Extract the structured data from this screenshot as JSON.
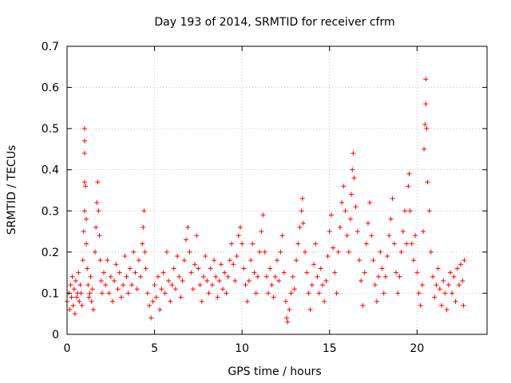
{
  "chart_data": {
    "type": "scatter",
    "title": "Day 193 of 2014, SRMTID for receiver cfrm",
    "xlabel": "GPS time / hours",
    "ylabel": "SRMTID / TECUs",
    "xlim": [
      0,
      24
    ],
    "ylim": [
      0,
      0.7
    ],
    "xticks": [
      0,
      5,
      10,
      15,
      20
    ],
    "xtick_labels": [
      "0",
      "5",
      "10",
      "15",
      "20"
    ],
    "yticks": [
      0,
      0.1,
      0.2,
      0.3,
      0.4,
      0.5,
      0.6,
      0.7
    ],
    "ytick_labels": [
      "0",
      "0.1",
      "0.2",
      "0.3",
      "0.4",
      "0.5",
      "0.6",
      "0.7"
    ],
    "grid": true,
    "marker": "+",
    "color": "#ff0000",
    "series": [
      {
        "name": "SRMTID",
        "points": [
          [
            0.0,
            0.08
          ],
          [
            0.1,
            0.1
          ],
          [
            0.15,
            0.06
          ],
          [
            0.2,
            0.12
          ],
          [
            0.25,
            0.09
          ],
          [
            0.3,
            0.14
          ],
          [
            0.35,
            0.07
          ],
          [
            0.4,
            0.11
          ],
          [
            0.45,
            0.05
          ],
          [
            0.5,
            0.13
          ],
          [
            0.55,
            0.09
          ],
          [
            0.6,
            0.1
          ],
          [
            0.65,
            0.15
          ],
          [
            0.7,
            0.08
          ],
          [
            0.75,
            0.12
          ],
          [
            0.8,
            0.1
          ],
          [
            0.85,
            0.07
          ],
          [
            0.9,
            0.18
          ],
          [
            0.95,
            0.25
          ],
          [
            1.0,
            0.3
          ],
          [
            1.0,
            0.37
          ],
          [
            1.0,
            0.44
          ],
          [
            1.0,
            0.47
          ],
          [
            1.0,
            0.5
          ],
          [
            1.05,
            0.36
          ],
          [
            1.1,
            0.28
          ],
          [
            1.1,
            0.22
          ],
          [
            1.15,
            0.16
          ],
          [
            1.2,
            0.12
          ],
          [
            1.25,
            0.09
          ],
          [
            1.3,
            0.1
          ],
          [
            1.35,
            0.14
          ],
          [
            1.4,
            0.08
          ],
          [
            1.45,
            0.11
          ],
          [
            1.5,
            0.06
          ],
          [
            1.6,
            0.2
          ],
          [
            1.65,
            0.26
          ],
          [
            1.7,
            0.32
          ],
          [
            1.75,
            0.37
          ],
          [
            1.8,
            0.3
          ],
          [
            1.85,
            0.24
          ],
          [
            1.9,
            0.18
          ],
          [
            1.95,
            0.13
          ],
          [
            2.0,
            0.1
          ],
          [
            2.1,
            0.15
          ],
          [
            2.2,
            0.12
          ],
          [
            2.3,
            0.18
          ],
          [
            2.4,
            0.1
          ],
          [
            2.5,
            0.14
          ],
          [
            2.6,
            0.08
          ],
          [
            2.7,
            0.13
          ],
          [
            2.8,
            0.17
          ],
          [
            2.9,
            0.11
          ],
          [
            3.0,
            0.15
          ],
          [
            3.1,
            0.09
          ],
          [
            3.2,
            0.12
          ],
          [
            3.3,
            0.19
          ],
          [
            3.4,
            0.14
          ],
          [
            3.5,
            0.1
          ],
          [
            3.6,
            0.16
          ],
          [
            3.7,
            0.12
          ],
          [
            3.8,
            0.2
          ],
          [
            3.9,
            0.15
          ],
          [
            4.0,
            0.11
          ],
          [
            4.1,
            0.18
          ],
          [
            4.2,
            0.14
          ],
          [
            4.3,
            0.22
          ],
          [
            4.35,
            0.26
          ],
          [
            4.4,
            0.3
          ],
          [
            4.45,
            0.2
          ],
          [
            4.5,
            0.16
          ],
          [
            4.6,
            0.1
          ],
          [
            4.7,
            0.07
          ],
          [
            4.8,
            0.04
          ],
          [
            4.9,
            0.08
          ],
          [
            5.0,
            0.12
          ],
          [
            5.1,
            0.09
          ],
          [
            5.2,
            0.14
          ],
          [
            5.3,
            0.06
          ],
          [
            5.4,
            0.11
          ],
          [
            5.5,
            0.15
          ],
          [
            5.6,
            0.1
          ],
          [
            5.7,
            0.2
          ],
          [
            5.8,
            0.13
          ],
          [
            5.9,
            0.08
          ],
          [
            6.0,
            0.12
          ],
          [
            6.1,
            0.16
          ],
          [
            6.2,
            0.11
          ],
          [
            6.3,
            0.19
          ],
          [
            6.4,
            0.14
          ],
          [
            6.5,
            0.09
          ],
          [
            6.6,
            0.13
          ],
          [
            6.7,
            0.18
          ],
          [
            6.8,
            0.23
          ],
          [
            6.9,
            0.26
          ],
          [
            7.0,
            0.2
          ],
          [
            7.1,
            0.15
          ],
          [
            7.2,
            0.11
          ],
          [
            7.3,
            0.17
          ],
          [
            7.4,
            0.24
          ],
          [
            7.5,
            0.16
          ],
          [
            7.6,
            0.12
          ],
          [
            7.7,
            0.08
          ],
          [
            7.8,
            0.14
          ],
          [
            7.9,
            0.19
          ],
          [
            8.0,
            0.13
          ],
          [
            8.1,
            0.1
          ],
          [
            8.2,
            0.16
          ],
          [
            8.3,
            0.12
          ],
          [
            8.4,
            0.18
          ],
          [
            8.5,
            0.14
          ],
          [
            8.6,
            0.09
          ],
          [
            8.7,
            0.13
          ],
          [
            8.8,
            0.17
          ],
          [
            8.9,
            0.11
          ],
          [
            9.0,
            0.15
          ],
          [
            9.1,
            0.1
          ],
          [
            9.2,
            0.14
          ],
          [
            9.3,
            0.18
          ],
          [
            9.4,
            0.22
          ],
          [
            9.5,
            0.17
          ],
          [
            9.6,
            0.13
          ],
          [
            9.7,
            0.19
          ],
          [
            9.8,
            0.24
          ],
          [
            9.9,
            0.26
          ],
          [
            10.0,
            0.22
          ],
          [
            10.1,
            0.16
          ],
          [
            10.2,
            0.12
          ],
          [
            10.3,
            0.08
          ],
          [
            10.4,
            0.13
          ],
          [
            10.5,
            0.18
          ],
          [
            10.6,
            0.22
          ],
          [
            10.7,
            0.15
          ],
          [
            10.8,
            0.1
          ],
          [
            10.9,
            0.14
          ],
          [
            11.0,
            0.2
          ],
          [
            11.1,
            0.25
          ],
          [
            11.2,
            0.29
          ],
          [
            11.3,
            0.2
          ],
          [
            11.4,
            0.14
          ],
          [
            11.5,
            0.1
          ],
          [
            11.6,
            0.16
          ],
          [
            11.7,
            0.12
          ],
          [
            11.8,
            0.09
          ],
          [
            11.9,
            0.14
          ],
          [
            12.0,
            0.18
          ],
          [
            12.1,
            0.13
          ],
          [
            12.2,
            0.2
          ],
          [
            12.3,
            0.24
          ],
          [
            12.4,
            0.15
          ],
          [
            12.5,
            0.08
          ],
          [
            12.55,
            0.04
          ],
          [
            12.6,
            0.03
          ],
          [
            12.7,
            0.06
          ],
          [
            12.8,
            0.1
          ],
          [
            12.9,
            0.14
          ],
          [
            13.0,
            0.11
          ],
          [
            13.1,
            0.18
          ],
          [
            13.2,
            0.22
          ],
          [
            13.3,
            0.26
          ],
          [
            13.4,
            0.3
          ],
          [
            13.45,
            0.33
          ],
          [
            13.5,
            0.27
          ],
          [
            13.6,
            0.2
          ],
          [
            13.7,
            0.15
          ],
          [
            13.8,
            0.1
          ],
          [
            13.9,
            0.06
          ],
          [
            14.0,
            0.12
          ],
          [
            14.1,
            0.17
          ],
          [
            14.2,
            0.22
          ],
          [
            14.3,
            0.14
          ],
          [
            14.4,
            0.1
          ],
          [
            14.5,
            0.16
          ],
          [
            14.6,
            0.12
          ],
          [
            14.7,
            0.08
          ],
          [
            14.8,
            0.13
          ],
          [
            14.9,
            0.19
          ],
          [
            15.0,
            0.25
          ],
          [
            15.1,
            0.29
          ],
          [
            15.2,
            0.21
          ],
          [
            15.3,
            0.15
          ],
          [
            15.4,
            0.1
          ],
          [
            15.5,
            0.2
          ],
          [
            15.6,
            0.26
          ],
          [
            15.7,
            0.32
          ],
          [
            15.8,
            0.36
          ],
          [
            15.9,
            0.3
          ],
          [
            16.0,
            0.24
          ],
          [
            16.1,
            0.2
          ],
          [
            16.2,
            0.28
          ],
          [
            16.25,
            0.34
          ],
          [
            16.3,
            0.4
          ],
          [
            16.35,
            0.44
          ],
          [
            16.4,
            0.38
          ],
          [
            16.5,
            0.31
          ],
          [
            16.6,
            0.25
          ],
          [
            16.7,
            0.18
          ],
          [
            16.8,
            0.13
          ],
          [
            16.9,
            0.07
          ],
          [
            17.0,
            0.15
          ],
          [
            17.1,
            0.22
          ],
          [
            17.2,
            0.27
          ],
          [
            17.3,
            0.32
          ],
          [
            17.4,
            0.24
          ],
          [
            17.5,
            0.18
          ],
          [
            17.6,
            0.12
          ],
          [
            17.7,
            0.08
          ],
          [
            17.8,
            0.14
          ],
          [
            17.9,
            0.2
          ],
          [
            18.0,
            0.16
          ],
          [
            18.1,
            0.1
          ],
          [
            18.2,
            0.14
          ],
          [
            18.3,
            0.19
          ],
          [
            18.4,
            0.24
          ],
          [
            18.5,
            0.28
          ],
          [
            18.6,
            0.33
          ],
          [
            18.7,
            0.22
          ],
          [
            18.8,
            0.15
          ],
          [
            18.9,
            0.1
          ],
          [
            19.0,
            0.14
          ],
          [
            19.1,
            0.2
          ],
          [
            19.2,
            0.25
          ],
          [
            19.3,
            0.3
          ],
          [
            19.4,
            0.22
          ],
          [
            19.5,
            0.36
          ],
          [
            19.55,
            0.39
          ],
          [
            19.6,
            0.3
          ],
          [
            19.7,
            0.22
          ],
          [
            19.8,
            0.18
          ],
          [
            19.9,
            0.24
          ],
          [
            20.0,
            0.15
          ],
          [
            20.1,
            0.1
          ],
          [
            20.2,
            0.07
          ],
          [
            20.3,
            0.12
          ],
          [
            20.35,
            0.25
          ],
          [
            20.4,
            0.45
          ],
          [
            20.45,
            0.51
          ],
          [
            20.5,
            0.56
          ],
          [
            20.5,
            0.62
          ],
          [
            20.55,
            0.5
          ],
          [
            20.6,
            0.37
          ],
          [
            20.7,
            0.3
          ],
          [
            20.8,
            0.2
          ],
          [
            20.9,
            0.14
          ],
          [
            21.0,
            0.09
          ],
          [
            21.1,
            0.12
          ],
          [
            21.2,
            0.16
          ],
          [
            21.3,
            0.11
          ],
          [
            21.4,
            0.07
          ],
          [
            21.5,
            0.13
          ],
          [
            21.6,
            0.1
          ],
          [
            21.7,
            0.06
          ],
          [
            21.8,
            0.12
          ],
          [
            21.9,
            0.15
          ],
          [
            22.0,
            0.1
          ],
          [
            22.1,
            0.14
          ],
          [
            22.2,
            0.08
          ],
          [
            22.3,
            0.16
          ],
          [
            22.4,
            0.12
          ],
          [
            22.5,
            0.17
          ],
          [
            22.6,
            0.13
          ],
          [
            22.65,
            0.07
          ],
          [
            22.7,
            0.18
          ]
        ]
      }
    ]
  }
}
